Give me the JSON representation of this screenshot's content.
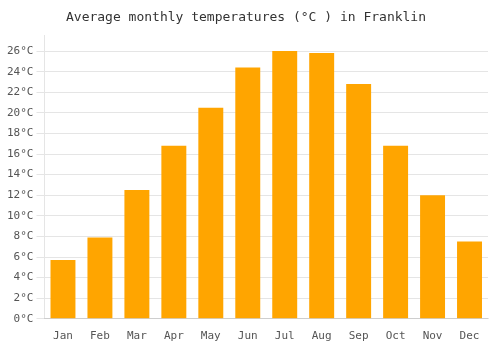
{
  "chart_data": {
    "type": "bar",
    "title": "Average monthly temperatures (°C ) in Franklin",
    "categories": [
      "Jan",
      "Feb",
      "Mar",
      "Apr",
      "May",
      "Jun",
      "Jul",
      "Aug",
      "Sep",
      "Oct",
      "Nov",
      "Dec"
    ],
    "values": [
      5.7,
      7.9,
      12.5,
      16.8,
      20.5,
      24.4,
      26.0,
      25.8,
      22.8,
      16.8,
      12.0,
      7.5
    ],
    "color": "#FFA500",
    "ylim": [
      0,
      27.5
    ],
    "yticks": [
      {
        "value": 0,
        "label": "0°C"
      },
      {
        "value": 2,
        "label": "2°C"
      },
      {
        "value": 4,
        "label": "4°C"
      },
      {
        "value": 6,
        "label": "6°C"
      },
      {
        "value": 8,
        "label": "8°C"
      },
      {
        "value": 10,
        "label": "10°C"
      },
      {
        "value": 12,
        "label": "12°C"
      },
      {
        "value": 14,
        "label": "14°C"
      },
      {
        "value": 16,
        "label": "16°C"
      },
      {
        "value": 18,
        "label": "18°C"
      },
      {
        "value": 20,
        "label": "20°C"
      },
      {
        "value": 22,
        "label": "22°C"
      },
      {
        "value": 24,
        "label": "24°C"
      },
      {
        "value": 26,
        "label": "26°C"
      }
    ],
    "grid": true
  }
}
